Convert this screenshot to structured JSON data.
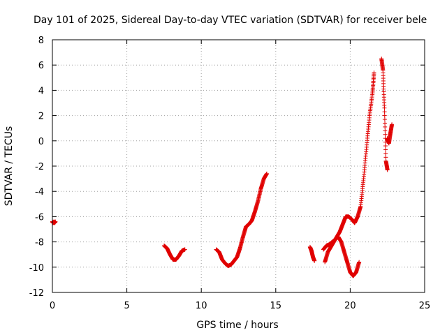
{
  "chart_data": {
    "type": "scatter",
    "title": "Day 101 of 2025, Sidereal Day-to-day VTEC variation (SDTVAR) for receiver bele",
    "xlabel": "GPS time / hours",
    "ylabel": "SDTVAR / TECUs",
    "xlim": [
      0,
      25
    ],
    "ylim": [
      -12,
      8
    ],
    "xticks": [
      0,
      5,
      10,
      15,
      20,
      25
    ],
    "yticks": [
      -12,
      -10,
      -8,
      -6,
      -4,
      -2,
      0,
      2,
      4,
      6,
      8
    ],
    "grid": true,
    "marker": "+",
    "color": "#e00000",
    "series": [
      {
        "name": "SDTVAR",
        "segments": [
          {
            "x": [
              0.0,
              0.05,
              0.1,
              0.15,
              0.2
            ],
            "y": [
              -6.4,
              -6.5,
              -6.4,
              -6.5,
              -6.4
            ]
          },
          {
            "x": [
              7.5,
              7.7,
              7.9,
              8.1,
              8.3,
              8.5,
              8.7,
              8.9
            ],
            "y": [
              -8.3,
              -8.5,
              -9.0,
              -9.4,
              -9.4,
              -9.1,
              -8.7,
              -8.6
            ]
          },
          {
            "x": [
              11.0,
              11.2,
              11.4,
              11.6,
              11.8,
              12.0,
              12.2,
              12.4,
              12.6,
              12.8,
              13.0,
              13.2,
              13.4,
              13.6,
              13.8,
              14.0,
              14.2,
              14.4
            ],
            "y": [
              -8.6,
              -8.8,
              -9.4,
              -9.7,
              -9.9,
              -9.8,
              -9.5,
              -9.2,
              -8.5,
              -7.6,
              -6.8,
              -6.6,
              -6.3,
              -5.6,
              -4.8,
              -3.8,
              -3.0,
              -2.6
            ]
          },
          {
            "x": [
              17.3,
              17.4,
              17.5,
              17.6
            ],
            "y": [
              -8.4,
              -8.7,
              -9.2,
              -9.5
            ]
          },
          {
            "x": [
              18.2,
              18.4,
              18.6,
              18.8,
              19.0,
              19.2,
              19.4,
              19.6,
              19.8,
              20.0,
              20.2,
              20.4,
              20.6
            ],
            "y": [
              -8.6,
              -8.3,
              -8.2,
              -8.0,
              -7.8,
              -7.6,
              -8.0,
              -8.8,
              -9.6,
              -10.4,
              -10.7,
              -10.4,
              -9.6
            ]
          },
          {
            "x": [
              18.3,
              18.5,
              18.7,
              18.9,
              19.1,
              19.3,
              19.5,
              19.7,
              19.9,
              20.1,
              20.3,
              20.5,
              20.7,
              20.9,
              21.1,
              21.3,
              21.5,
              21.6
            ],
            "y": [
              -9.6,
              -8.8,
              -8.4,
              -8.0,
              -7.6,
              -7.2,
              -6.6,
              -6.0,
              -6.0,
              -6.2,
              -6.5,
              -6.0,
              -5.2,
              -3.0,
              -0.5,
              2.0,
              3.8,
              5.4
            ]
          },
          {
            "x": [
              22.1,
              22.2,
              22.3,
              22.4,
              22.5
            ],
            "y": [
              6.5,
              5.6,
              2.6,
              -1.6,
              -2.3
            ]
          },
          {
            "x": [
              22.5,
              22.6,
              22.7,
              22.8
            ],
            "y": [
              0.2,
              -0.2,
              0.6,
              1.3
            ]
          }
        ]
      }
    ]
  }
}
